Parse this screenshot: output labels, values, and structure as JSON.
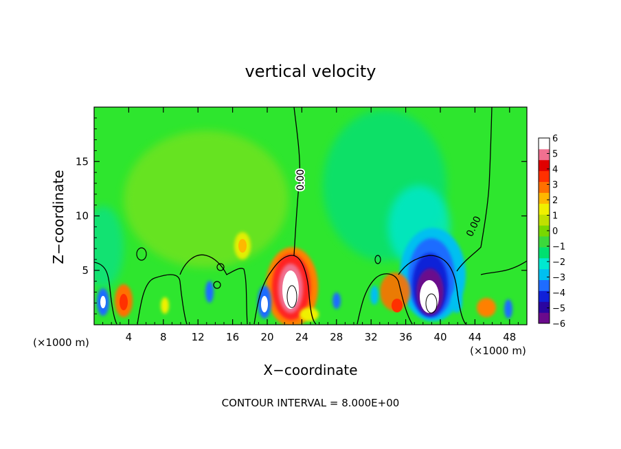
{
  "chart_data": {
    "type": "heatmap",
    "title": "vertical velocity",
    "xlabel": "X−coordinate",
    "ylabel": "Z−coordinate",
    "x_unit_left": "(×1000 m)",
    "x_unit_right": "(×1000 m)",
    "xlim": [
      0,
      50
    ],
    "ylim": [
      0,
      20
    ],
    "x_ticks": [
      4,
      8,
      12,
      16,
      20,
      24,
      28,
      32,
      36,
      40,
      44,
      48
    ],
    "x_tick_labels": [
      "4",
      "8",
      "12",
      "16",
      "20",
      "24",
      "28",
      "32",
      "36",
      "40",
      "44",
      "48"
    ],
    "y_ticks": [
      5,
      10,
      15
    ],
    "y_tick_labels": [
      "5",
      "10",
      "15"
    ],
    "contour_label": "0.00",
    "contour_interval_text": "CONTOUR INTERVAL = 8.000E+00",
    "colorbar": {
      "min": -6,
      "max": 6,
      "labels": [
        "6",
        "5",
        "4",
        "3",
        "2",
        "1",
        "0",
        "−1",
        "−2",
        "−3",
        "−4",
        "−5",
        "−6"
      ],
      "colors": [
        "#6a0a8c",
        "#2a05a0",
        "#1020d8",
        "#1e6cff",
        "#00c0f0",
        "#00e8d0",
        "#00e070",
        "#3cd83c",
        "#78d800",
        "#c0e000",
        "#f0f000",
        "#ffb800",
        "#ff7000",
        "#ff3000",
        "#e00000",
        "#f07090",
        "#ffffff"
      ]
    },
    "features": [
      {
        "x": 22.8,
        "z": 3.2,
        "w": 8
      },
      {
        "x": 38.5,
        "z": 2.6,
        "w": -7
      },
      {
        "x": 3.2,
        "z": 2.0,
        "w": 3.5
      },
      {
        "x": 1.0,
        "z": 2.0,
        "w": -5
      },
      {
        "x": 19.6,
        "z": 2.0,
        "w": -5
      },
      {
        "x": 17.5,
        "z": 7.5,
        "w": 1.8
      },
      {
        "x": 34.5,
        "z": 2.5,
        "w": 3
      },
      {
        "x": 45.0,
        "z": 1.5,
        "w": 3
      }
    ]
  }
}
